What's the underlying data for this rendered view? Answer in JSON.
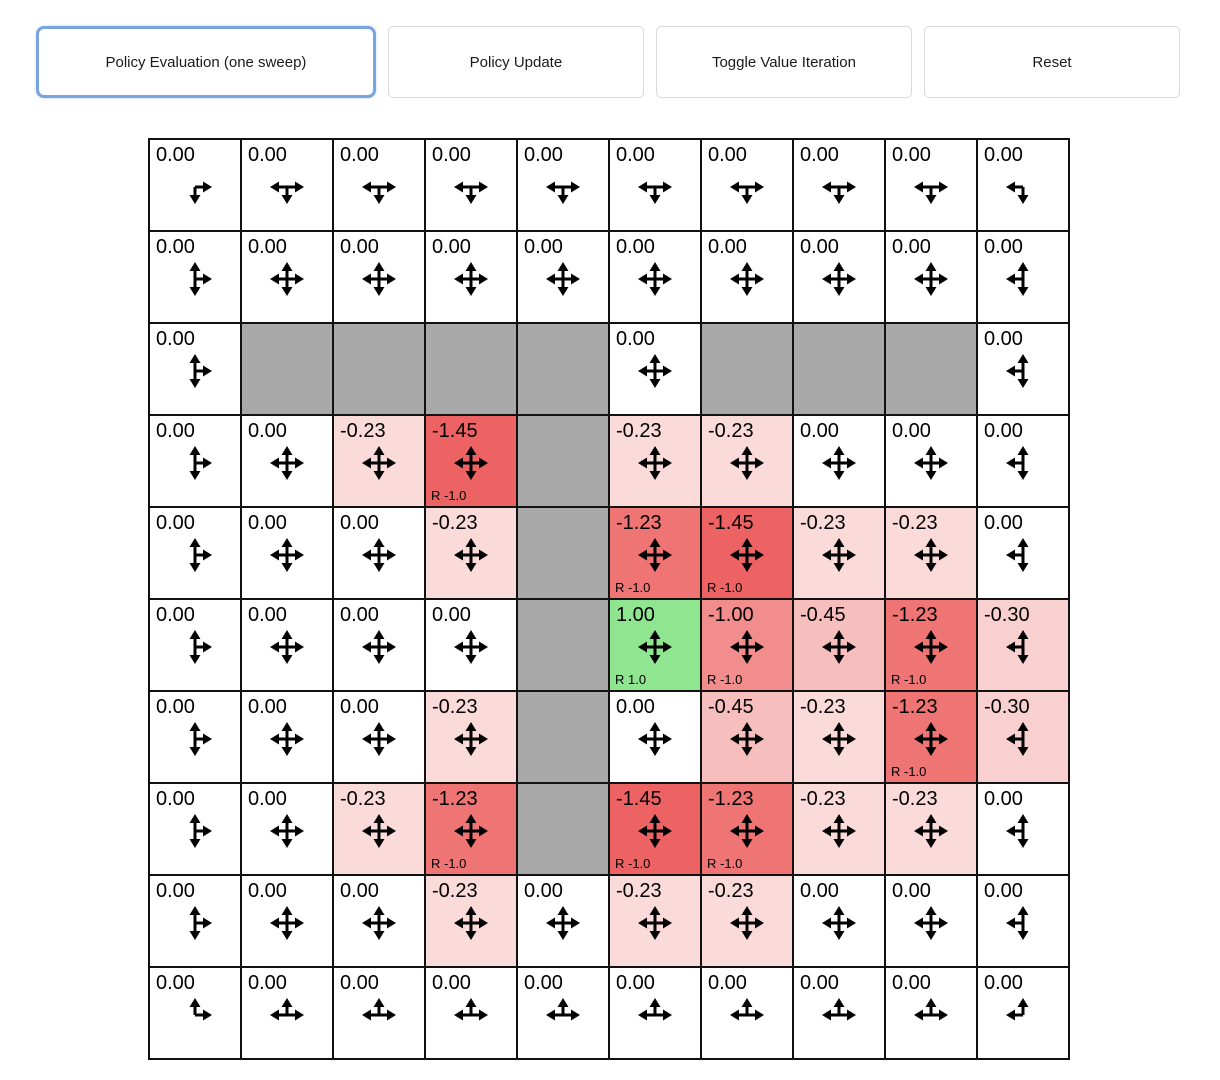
{
  "toolbar": {
    "buttons": [
      {
        "label": "Policy Evaluation (one sweep)",
        "active": true
      },
      {
        "label": "Policy Update",
        "active": false
      },
      {
        "label": "Toggle Value Iteration",
        "active": false
      },
      {
        "label": "Reset",
        "active": false
      }
    ]
  },
  "colors": {
    "active_button_border": "#78a5e0",
    "grid_line": "#111111",
    "wall": "#a9a9a9",
    "positive": "#90e690",
    "negative_strong": "#ed6262"
  },
  "grid": {
    "rows": 10,
    "cols": 10,
    "wall_color": "#a9a9a9",
    "value_colors": {
      "1.00": "#90e690",
      "0.00": "#ffffff",
      "-0.23": "#fbdada",
      "-0.30": "#f9d0d0",
      "-0.45": "#f7bebe",
      "-1.00": "#f18d8d",
      "-1.23": "#ef7474",
      "-1.45": "#ed6262"
    },
    "cells": [
      [
        {
          "v": "0.00",
          "d": "DR"
        },
        {
          "v": "0.00",
          "d": "DLR"
        },
        {
          "v": "0.00",
          "d": "DLR"
        },
        {
          "v": "0.00",
          "d": "DLR"
        },
        {
          "v": "0.00",
          "d": "DLR"
        },
        {
          "v": "0.00",
          "d": "DLR"
        },
        {
          "v": "0.00",
          "d": "DLR"
        },
        {
          "v": "0.00",
          "d": "DLR"
        },
        {
          "v": "0.00",
          "d": "DLR"
        },
        {
          "v": "0.00",
          "d": "DL"
        }
      ],
      [
        {
          "v": "0.00",
          "d": "UDR"
        },
        {
          "v": "0.00",
          "d": "UDLR"
        },
        {
          "v": "0.00",
          "d": "UDLR"
        },
        {
          "v": "0.00",
          "d": "UDLR"
        },
        {
          "v": "0.00",
          "d": "UDLR"
        },
        {
          "v": "0.00",
          "d": "UDLR"
        },
        {
          "v": "0.00",
          "d": "UDLR"
        },
        {
          "v": "0.00",
          "d": "UDLR"
        },
        {
          "v": "0.00",
          "d": "UDLR"
        },
        {
          "v": "0.00",
          "d": "UDL"
        }
      ],
      [
        {
          "v": "0.00",
          "d": "UDR"
        },
        {
          "w": 1
        },
        {
          "w": 1
        },
        {
          "w": 1
        },
        {
          "w": 1
        },
        {
          "v": "0.00",
          "d": "UDLR"
        },
        {
          "w": 1
        },
        {
          "w": 1
        },
        {
          "w": 1
        },
        {
          "v": "0.00",
          "d": "UDL"
        }
      ],
      [
        {
          "v": "0.00",
          "d": "UDR"
        },
        {
          "v": "0.00",
          "d": "UDLR"
        },
        {
          "v": "-0.23",
          "d": "UDLR"
        },
        {
          "v": "-1.45",
          "d": "UDLR",
          "r": "R -1.0"
        },
        {
          "w": 1
        },
        {
          "v": "-0.23",
          "d": "UDLR"
        },
        {
          "v": "-0.23",
          "d": "UDLR"
        },
        {
          "v": "0.00",
          "d": "UDLR"
        },
        {
          "v": "0.00",
          "d": "UDLR"
        },
        {
          "v": "0.00",
          "d": "UDL"
        }
      ],
      [
        {
          "v": "0.00",
          "d": "UDR"
        },
        {
          "v": "0.00",
          "d": "UDLR"
        },
        {
          "v": "0.00",
          "d": "UDLR"
        },
        {
          "v": "-0.23",
          "d": "UDLR"
        },
        {
          "w": 1
        },
        {
          "v": "-1.23",
          "d": "UDLR",
          "r": "R -1.0"
        },
        {
          "v": "-1.45",
          "d": "UDLR",
          "r": "R -1.0"
        },
        {
          "v": "-0.23",
          "d": "UDLR"
        },
        {
          "v": "-0.23",
          "d": "UDLR"
        },
        {
          "v": "0.00",
          "d": "UDL"
        }
      ],
      [
        {
          "v": "0.00",
          "d": "UDR"
        },
        {
          "v": "0.00",
          "d": "UDLR"
        },
        {
          "v": "0.00",
          "d": "UDLR"
        },
        {
          "v": "0.00",
          "d": "UDLR"
        },
        {
          "w": 1
        },
        {
          "v": "1.00",
          "d": "UDLR",
          "r": "R 1.0"
        },
        {
          "v": "-1.00",
          "d": "UDLR",
          "r": "R -1.0"
        },
        {
          "v": "-0.45",
          "d": "UDLR"
        },
        {
          "v": "-1.23",
          "d": "UDLR",
          "r": "R -1.0"
        },
        {
          "v": "-0.30",
          "d": "UDL"
        }
      ],
      [
        {
          "v": "0.00",
          "d": "UDR"
        },
        {
          "v": "0.00",
          "d": "UDLR"
        },
        {
          "v": "0.00",
          "d": "UDLR"
        },
        {
          "v": "-0.23",
          "d": "UDLR"
        },
        {
          "w": 1
        },
        {
          "v": "0.00",
          "d": "UDLR"
        },
        {
          "v": "-0.45",
          "d": "UDLR"
        },
        {
          "v": "-0.23",
          "d": "UDLR"
        },
        {
          "v": "-1.23",
          "d": "UDLR",
          "r": "R -1.0"
        },
        {
          "v": "-0.30",
          "d": "UDL"
        }
      ],
      [
        {
          "v": "0.00",
          "d": "UDR"
        },
        {
          "v": "0.00",
          "d": "UDLR"
        },
        {
          "v": "-0.23",
          "d": "UDLR"
        },
        {
          "v": "-1.23",
          "d": "UDLR",
          "r": "R -1.0"
        },
        {
          "w": 1
        },
        {
          "v": "-1.45",
          "d": "UDLR",
          "r": "R -1.0"
        },
        {
          "v": "-1.23",
          "d": "UDLR",
          "r": "R -1.0"
        },
        {
          "v": "-0.23",
          "d": "UDLR"
        },
        {
          "v": "-0.23",
          "d": "UDLR"
        },
        {
          "v": "0.00",
          "d": "UDL"
        }
      ],
      [
        {
          "v": "0.00",
          "d": "UDR"
        },
        {
          "v": "0.00",
          "d": "UDLR"
        },
        {
          "v": "0.00",
          "d": "UDLR"
        },
        {
          "v": "-0.23",
          "d": "UDLR"
        },
        {
          "v": "0.00",
          "d": "UDLR"
        },
        {
          "v": "-0.23",
          "d": "UDLR"
        },
        {
          "v": "-0.23",
          "d": "UDLR"
        },
        {
          "v": "0.00",
          "d": "UDLR"
        },
        {
          "v": "0.00",
          "d": "UDLR"
        },
        {
          "v": "0.00",
          "d": "UDL"
        }
      ],
      [
        {
          "v": "0.00",
          "d": "UR"
        },
        {
          "v": "0.00",
          "d": "ULR"
        },
        {
          "v": "0.00",
          "d": "ULR"
        },
        {
          "v": "0.00",
          "d": "ULR"
        },
        {
          "v": "0.00",
          "d": "ULR"
        },
        {
          "v": "0.00",
          "d": "ULR"
        },
        {
          "v": "0.00",
          "d": "ULR"
        },
        {
          "v": "0.00",
          "d": "ULR"
        },
        {
          "v": "0.00",
          "d": "ULR"
        },
        {
          "v": "0.00",
          "d": "UL"
        }
      ]
    ]
  }
}
